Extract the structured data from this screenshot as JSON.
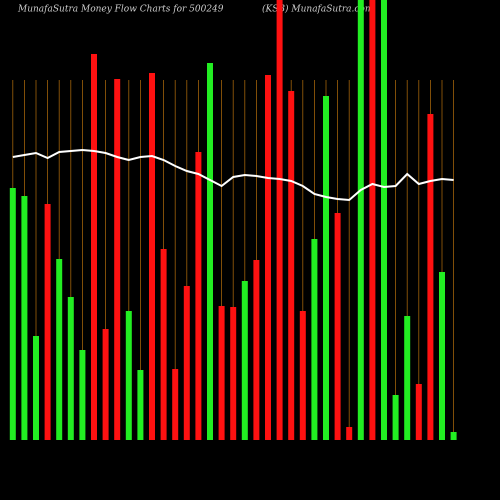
{
  "chart_data": {
    "type": "bar",
    "title": "MunafaSutra  Money Flow  Charts for 500249",
    "subtitle": "(KSB) MunafaSutra.com",
    "ylim": [
      0,
      440
    ],
    "bars": {
      "values": [
        252,
        244,
        104,
        236,
        181,
        143,
        90,
        386,
        111,
        361,
        129,
        70,
        367,
        191,
        71,
        154,
        288,
        377,
        134,
        133,
        159,
        180,
        365,
        440,
        349,
        129,
        201,
        344,
        227,
        13,
        440,
        440,
        440,
        45,
        124,
        56,
        326,
        168,
        8
      ],
      "colors": [
        "#22ee22",
        "#22ee22",
        "#22ee22",
        "#ff1111",
        "#22ee22",
        "#22ee22",
        "#22ee22",
        "#ff1111",
        "#ff1111",
        "#ff1111",
        "#22ee22",
        "#22ee22",
        "#ff1111",
        "#ff1111",
        "#ff1111",
        "#ff1111",
        "#ff1111",
        "#22ee22",
        "#ff1111",
        "#ff1111",
        "#22ee22",
        "#ff1111",
        "#ff1111",
        "#ff1111",
        "#ff1111",
        "#ff1111",
        "#22ee22",
        "#22ee22",
        "#ff1111",
        "#ff1111",
        "#22ee22",
        "#ff1111",
        "#22ee22",
        "#22ee22",
        "#22ee22",
        "#ff1111",
        "#ff1111",
        "#22ee22",
        "#22ee22"
      ]
    },
    "line": {
      "color": "#ffffff",
      "values": [
        283,
        285,
        287,
        282,
        288,
        289,
        290,
        289,
        287,
        283,
        280,
        283,
        284,
        280,
        274,
        269,
        266,
        260,
        254,
        263,
        265,
        264,
        262,
        261,
        259,
        254,
        246,
        243,
        241,
        240,
        250,
        256,
        253,
        254,
        266,
        256,
        259,
        261,
        260
      ]
    }
  }
}
